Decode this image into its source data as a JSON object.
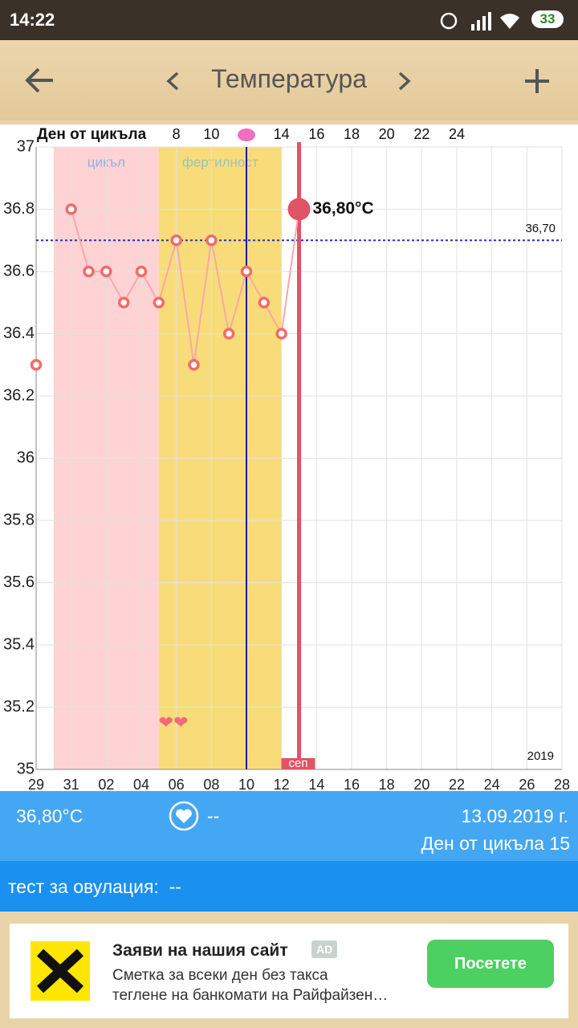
{
  "status_bar": {
    "time": "14:22",
    "battery": "33"
  },
  "header": {
    "title": "Температура"
  },
  "chart_data": {
    "type": "line",
    "x2label": "Ден от цикъла",
    "x2ticks": [
      8,
      10,
      14,
      16,
      18,
      20,
      22,
      24
    ],
    "categories": [
      "29",
      null,
      "31",
      null,
      "02",
      null,
      "04",
      null,
      "06",
      null,
      "08",
      null,
      "10",
      null,
      "12",
      null,
      "14",
      null,
      "16",
      null,
      "18",
      null,
      "20",
      null,
      "22",
      null,
      "24",
      null,
      "26",
      null,
      "28"
    ],
    "values": [
      36.3,
      null,
      36.8,
      36.6,
      36.6,
      36.5,
      36.6,
      36.5,
      36.7,
      36.3,
      36.7,
      36.4,
      36.6,
      36.5,
      36.4,
      36.8,
      null,
      null,
      null,
      null,
      null,
      null,
      null,
      null,
      null,
      null,
      null,
      null,
      null,
      null,
      null
    ],
    "value_labels": [
      null,
      null,
      null,
      null,
      null,
      null,
      null,
      null,
      null,
      null,
      null,
      null,
      null,
      null,
      null,
      "36,80°C",
      null,
      null,
      null,
      null,
      null,
      null,
      null,
      null,
      null,
      null,
      null,
      null,
      null,
      null,
      null
    ],
    "color": "#f26b6b",
    "ylim": [
      35,
      37
    ],
    "yticks": [
      35,
      35.2,
      35.4,
      35.6,
      35.8,
      36,
      36.2,
      36.4,
      36.6,
      36.8,
      37
    ],
    "grid": true,
    "reference_line": {
      "value": 36.7,
      "label": "36,70"
    },
    "regions": [
      {
        "label": "цикъл",
        "start": 1,
        "end": 7,
        "color": "#ffd3d3"
      },
      {
        "label": "фертилност",
        "start": 7,
        "end": 14,
        "color": "#f9dc7a"
      }
    ],
    "ovulation_index": 12,
    "today_index": 15,
    "month_label": "сеп",
    "year_label": "2019",
    "hearts": "❤❤"
  },
  "info": {
    "temperature": "36,80°C",
    "intercourse": "--",
    "date": "13.09.2019 г.",
    "cycle_day": "Ден от цикъла 15",
    "ovulation_test": "тест за овулация:  --"
  },
  "ad": {
    "title": "Заяви на нашия сайт",
    "badge": "AD",
    "line1": "Сметка за всеки ден без такса",
    "line2": "теглене на банкомати на Райфайзен…",
    "button": "Посетете"
  }
}
